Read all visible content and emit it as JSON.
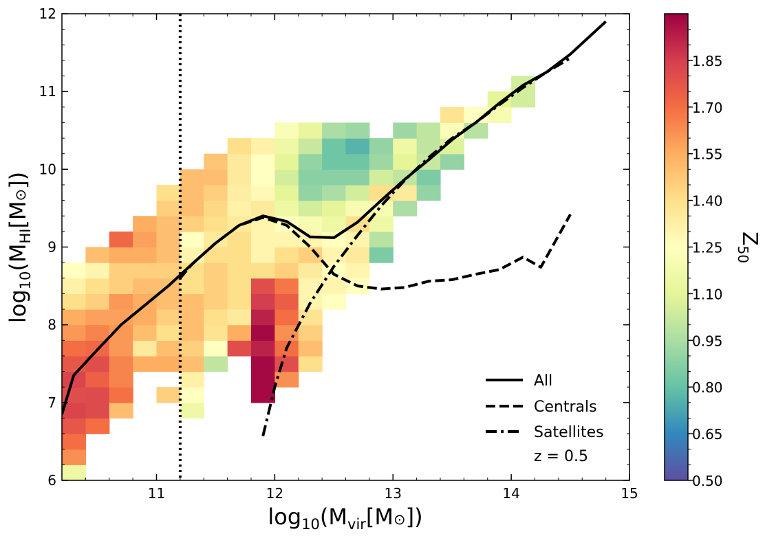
{
  "chart_data": {
    "type": "heatmap",
    "xlabel": {
      "base": "log",
      "base_sub": "10",
      "open": "(M",
      "sub": "vir",
      "bracket": "[M",
      "sun": "⊙",
      "close": "])"
    },
    "ylabel": {
      "base": "log",
      "base_sub": "10",
      "open": "(M",
      "sub": "HI",
      "bracket": "[M",
      "sun": "⊙",
      "close": "])"
    },
    "xlim": [
      10.2,
      15
    ],
    "ylim": [
      6,
      12
    ],
    "xticks": [
      11,
      12,
      13,
      14,
      15
    ],
    "yticks": [
      6,
      7,
      8,
      9,
      10,
      11,
      12
    ],
    "bin_width_x": 0.2,
    "bin_height_y": 0.2,
    "cells": [
      [
        10.2,
        6.0,
        1.15
      ],
      [
        10.2,
        6.2,
        1.62
      ],
      [
        10.2,
        6.4,
        1.7
      ],
      [
        10.2,
        6.6,
        1.77
      ],
      [
        10.2,
        6.8,
        1.83
      ],
      [
        10.2,
        7.0,
        1.8
      ],
      [
        10.2,
        7.2,
        1.83
      ],
      [
        10.2,
        7.4,
        1.77
      ],
      [
        10.2,
        7.6,
        1.7
      ],
      [
        10.2,
        7.8,
        1.6
      ],
      [
        10.2,
        8.0,
        1.55
      ],
      [
        10.2,
        8.2,
        1.4
      ],
      [
        10.2,
        8.4,
        1.32
      ],
      [
        10.2,
        8.6,
        1.25
      ],
      [
        10.4,
        6.6,
        1.7
      ],
      [
        10.4,
        6.8,
        1.81
      ],
      [
        10.4,
        7.0,
        1.81
      ],
      [
        10.4,
        7.2,
        1.74
      ],
      [
        10.4,
        7.4,
        1.8
      ],
      [
        10.4,
        7.6,
        1.72
      ],
      [
        10.4,
        7.8,
        1.65
      ],
      [
        10.4,
        8.0,
        1.58
      ],
      [
        10.4,
        8.2,
        1.45
      ],
      [
        10.4,
        8.4,
        1.4
      ],
      [
        10.4,
        8.6,
        1.3
      ],
      [
        10.4,
        8.8,
        1.5
      ],
      [
        10.6,
        6.8,
        1.5
      ],
      [
        10.6,
        7.0,
        1.69
      ],
      [
        10.6,
        7.2,
        1.65
      ],
      [
        10.6,
        7.4,
        1.65
      ],
      [
        10.6,
        7.6,
        1.6
      ],
      [
        10.6,
        7.8,
        1.6
      ],
      [
        10.6,
        8.0,
        1.58
      ],
      [
        10.6,
        8.2,
        1.6
      ],
      [
        10.6,
        8.4,
        1.45
      ],
      [
        10.6,
        8.6,
        1.45
      ],
      [
        10.6,
        8.8,
        1.55
      ],
      [
        10.6,
        9.0,
        1.72
      ],
      [
        10.8,
        7.4,
        1.55
      ],
      [
        10.8,
        7.6,
        1.35
      ],
      [
        10.8,
        7.8,
        1.5
      ],
      [
        10.8,
        8.0,
        1.55
      ],
      [
        10.8,
        8.2,
        1.55
      ],
      [
        10.8,
        8.4,
        1.5
      ],
      [
        10.8,
        8.6,
        1.45
      ],
      [
        10.8,
        8.8,
        1.55
      ],
      [
        10.8,
        9.0,
        1.58
      ],
      [
        10.8,
        9.2,
        1.55
      ],
      [
        11.0,
        7.0,
        1.45
      ],
      [
        11.0,
        7.4,
        1.55
      ],
      [
        11.0,
        7.6,
        1.5
      ],
      [
        11.0,
        7.8,
        1.4
      ],
      [
        11.0,
        8.0,
        1.45
      ],
      [
        11.0,
        8.2,
        1.5
      ],
      [
        11.0,
        8.4,
        1.5
      ],
      [
        11.0,
        8.6,
        1.45
      ],
      [
        11.0,
        8.8,
        1.5
      ],
      [
        11.0,
        9.0,
        1.5
      ],
      [
        11.0,
        9.2,
        1.5
      ],
      [
        11.0,
        9.4,
        1.45
      ],
      [
        11.0,
        9.6,
        1.4
      ],
      [
        11.2,
        6.8,
        1.15
      ],
      [
        11.2,
        7.0,
        1.25
      ],
      [
        11.2,
        7.2,
        1.32
      ],
      [
        11.2,
        7.4,
        1.5
      ],
      [
        11.2,
        7.6,
        1.45
      ],
      [
        11.2,
        7.8,
        1.5
      ],
      [
        11.2,
        8.0,
        1.5
      ],
      [
        11.2,
        8.2,
        1.5
      ],
      [
        11.2,
        8.4,
        1.4
      ],
      [
        11.2,
        8.6,
        1.4
      ],
      [
        11.2,
        8.8,
        1.3
      ],
      [
        11.2,
        9.0,
        1.25
      ],
      [
        11.2,
        9.2,
        1.45
      ],
      [
        11.2,
        9.4,
        1.5
      ],
      [
        11.2,
        9.6,
        1.5
      ],
      [
        11.2,
        9.8,
        1.5
      ],
      [
        11.4,
        7.4,
        1.0
      ],
      [
        11.4,
        7.6,
        1.25
      ],
      [
        11.4,
        7.8,
        1.38
      ],
      [
        11.4,
        8.0,
        1.4
      ],
      [
        11.4,
        8.2,
        1.45
      ],
      [
        11.4,
        8.4,
        1.45
      ],
      [
        11.4,
        8.6,
        1.45
      ],
      [
        11.4,
        8.8,
        1.4
      ],
      [
        11.4,
        9.0,
        1.35
      ],
      [
        11.4,
        9.2,
        1.4
      ],
      [
        11.4,
        9.4,
        1.42
      ],
      [
        11.4,
        9.6,
        1.45
      ],
      [
        11.4,
        9.8,
        1.5
      ],
      [
        11.4,
        10.0,
        1.48
      ],
      [
        11.6,
        7.6,
        1.8
      ],
      [
        11.6,
        7.8,
        1.55
      ],
      [
        11.6,
        8.0,
        1.35
      ],
      [
        11.6,
        8.2,
        1.4
      ],
      [
        11.6,
        8.4,
        1.4
      ],
      [
        11.6,
        8.6,
        1.4
      ],
      [
        11.6,
        8.8,
        1.4
      ],
      [
        11.6,
        9.0,
        1.4
      ],
      [
        11.6,
        9.2,
        1.35
      ],
      [
        11.6,
        9.4,
        1.32
      ],
      [
        11.6,
        9.6,
        1.33
      ],
      [
        11.6,
        9.8,
        1.35
      ],
      [
        11.6,
        10.0,
        1.35
      ],
      [
        11.6,
        10.2,
        1.4
      ],
      [
        11.8,
        7.0,
        1.98
      ],
      [
        11.8,
        7.2,
        1.98
      ],
      [
        11.8,
        7.4,
        1.98
      ],
      [
        11.8,
        7.6,
        1.92
      ],
      [
        11.8,
        7.8,
        1.98
      ],
      [
        11.8,
        8.0,
        1.92
      ],
      [
        11.8,
        8.2,
        1.85
      ],
      [
        11.8,
        8.4,
        1.8
      ],
      [
        11.8,
        8.6,
        1.4
      ],
      [
        11.8,
        8.8,
        1.3
      ],
      [
        11.8,
        9.0,
        1.3
      ],
      [
        11.8,
        9.2,
        1.3
      ],
      [
        11.8,
        9.4,
        1.35
      ],
      [
        11.8,
        9.6,
        1.28
      ],
      [
        11.8,
        9.8,
        1.25
      ],
      [
        11.8,
        10.0,
        1.25
      ],
      [
        11.8,
        10.2,
        1.32
      ],
      [
        12.0,
        7.2,
        1.62
      ],
      [
        12.0,
        7.4,
        1.8
      ],
      [
        12.0,
        7.6,
        1.7
      ],
      [
        12.0,
        7.8,
        1.62
      ],
      [
        12.0,
        8.0,
        1.7
      ],
      [
        12.0,
        8.2,
        1.75
      ],
      [
        12.0,
        8.4,
        1.68
      ],
      [
        12.0,
        8.6,
        1.45
      ],
      [
        12.0,
        8.8,
        1.4
      ],
      [
        12.0,
        9.0,
        1.3
      ],
      [
        12.0,
        9.2,
        1.25
      ],
      [
        12.0,
        9.4,
        1.15
      ],
      [
        12.0,
        9.6,
        1.1
      ],
      [
        12.0,
        9.8,
        1.05
      ],
      [
        12.0,
        10.0,
        1.1
      ],
      [
        12.0,
        10.2,
        1.15
      ],
      [
        12.0,
        10.4,
        1.22
      ],
      [
        12.2,
        7.4,
        1.4
      ],
      [
        12.2,
        7.6,
        1.5
      ],
      [
        12.2,
        7.8,
        1.45
      ],
      [
        12.2,
        8.0,
        1.38
      ],
      [
        12.2,
        8.2,
        1.3
      ],
      [
        12.2,
        8.4,
        1.3
      ],
      [
        12.2,
        8.6,
        1.35
      ],
      [
        12.2,
        8.8,
        1.45
      ],
      [
        12.2,
        9.0,
        1.3
      ],
      [
        12.2,
        9.2,
        1.2
      ],
      [
        12.2,
        9.4,
        1.05
      ],
      [
        12.2,
        9.6,
        0.9
      ],
      [
        12.2,
        9.8,
        0.88
      ],
      [
        12.2,
        10.0,
        0.9
      ],
      [
        12.2,
        10.2,
        1.02
      ],
      [
        12.2,
        10.4,
        1.12
      ],
      [
        12.4,
        8.2,
        1.25
      ],
      [
        12.4,
        8.4,
        1.3
      ],
      [
        12.4,
        8.6,
        1.25
      ],
      [
        12.4,
        8.8,
        1.3
      ],
      [
        12.4,
        9.0,
        1.25
      ],
      [
        12.4,
        9.2,
        1.15
      ],
      [
        12.4,
        9.4,
        1.1
      ],
      [
        12.4,
        9.6,
        0.95
      ],
      [
        12.4,
        9.8,
        0.88
      ],
      [
        12.4,
        10.0,
        0.82
      ],
      [
        12.4,
        10.2,
        0.82
      ],
      [
        12.4,
        10.4,
        0.95
      ],
      [
        12.6,
        8.4,
        1.25
      ],
      [
        12.6,
        8.6,
        1.3
      ],
      [
        12.6,
        8.8,
        1.35
      ],
      [
        12.6,
        9.0,
        1.3
      ],
      [
        12.6,
        9.2,
        1.4
      ],
      [
        12.6,
        9.4,
        1.2
      ],
      [
        12.6,
        9.6,
        1.05
      ],
      [
        12.6,
        9.8,
        0.88
      ],
      [
        12.6,
        10.0,
        0.82
      ],
      [
        12.6,
        10.2,
        0.76
      ],
      [
        12.6,
        10.4,
        0.92
      ],
      [
        12.8,
        8.8,
        0.85
      ],
      [
        12.8,
        9.0,
        0.98
      ],
      [
        12.8,
        9.2,
        1.15
      ],
      [
        12.8,
        9.4,
        1.2
      ],
      [
        12.8,
        9.6,
        1.4
      ],
      [
        12.8,
        9.8,
        1.05
      ],
      [
        12.8,
        10.0,
        0.92
      ],
      [
        12.8,
        10.2,
        0.9
      ],
      [
        13.0,
        9.4,
        0.95
      ],
      [
        13.0,
        9.6,
        1.35
      ],
      [
        13.0,
        9.8,
        1.0
      ],
      [
        13.0,
        10.0,
        1.1
      ],
      [
        13.0,
        10.2,
        1.15
      ],
      [
        13.0,
        10.4,
        0.92
      ],
      [
        13.2,
        9.6,
        0.9
      ],
      [
        13.2,
        9.8,
        0.85
      ],
      [
        13.2,
        10.0,
        1.02
      ],
      [
        13.2,
        10.2,
        1.0
      ],
      [
        13.2,
        10.4,
        1.0
      ],
      [
        13.4,
        10.0,
        0.9
      ],
      [
        13.4,
        10.2,
        1.08
      ],
      [
        13.4,
        10.4,
        1.22
      ],
      [
        13.4,
        10.6,
        1.38
      ],
      [
        13.6,
        10.4,
        0.98
      ],
      [
        13.6,
        10.6,
        1.25
      ],
      [
        13.8,
        10.6,
        1.2
      ],
      [
        13.8,
        10.8,
        1.1
      ],
      [
        14.0,
        10.8,
        1.05
      ],
      [
        14.0,
        11.0,
        1.05
      ]
    ],
    "series": [
      {
        "name": "All",
        "style": "solid",
        "x": [
          10.2,
          10.3,
          10.5,
          10.7,
          10.9,
          11.1,
          11.3,
          11.5,
          11.7,
          11.9,
          12.1,
          12.3,
          12.5,
          12.7,
          12.9,
          13.1,
          13.3,
          13.5,
          13.7,
          13.9,
          14.1,
          14.3,
          14.5,
          14.8
        ],
        "y": [
          6.85,
          7.35,
          7.68,
          8.0,
          8.25,
          8.5,
          8.78,
          9.05,
          9.28,
          9.4,
          9.33,
          9.13,
          9.12,
          9.32,
          9.6,
          9.87,
          10.12,
          10.38,
          10.6,
          10.85,
          11.08,
          11.25,
          11.48,
          11.9
        ]
      },
      {
        "name": "Centrals",
        "style": "dashed",
        "x": [
          11.2,
          11.3,
          11.5,
          11.7,
          11.9,
          12.1,
          12.3,
          12.5,
          12.7,
          12.9,
          13.1,
          13.3,
          13.5,
          13.7,
          13.9,
          14.1,
          14.25,
          14.5
        ],
        "y": [
          8.6,
          8.78,
          9.05,
          9.28,
          9.38,
          9.28,
          9.0,
          8.65,
          8.5,
          8.46,
          8.48,
          8.56,
          8.58,
          8.65,
          8.71,
          8.87,
          8.74,
          9.42
        ]
      },
      {
        "name": "Satellites",
        "style": "dashdot",
        "x": [
          11.9,
          12.0,
          12.1,
          12.3,
          12.5,
          12.7,
          12.9,
          13.1,
          13.3,
          13.5,
          13.7,
          13.9,
          14.1,
          14.3,
          14.5
        ],
        "y": [
          6.57,
          7.2,
          7.7,
          8.28,
          8.75,
          9.15,
          9.53,
          9.86,
          10.15,
          10.4,
          10.6,
          10.83,
          11.05,
          11.25,
          11.43
        ]
      }
    ],
    "vline": {
      "x": 11.2,
      "style": "dotted"
    },
    "legend": {
      "position": "lower-right",
      "items": [
        "All",
        "Centrals",
        "Satellites"
      ],
      "note": "z = 0.5"
    },
    "colorbar": {
      "label": "Z",
      "label_sub": "50",
      "colormap": "Spectral_r",
      "range": [
        0.5,
        2.0
      ],
      "ticks": [
        "0.50",
        "0.65",
        "0.80",
        "0.95",
        "1.10",
        "1.25",
        "1.40",
        "1.55",
        "1.70",
        "1.85"
      ]
    }
  }
}
